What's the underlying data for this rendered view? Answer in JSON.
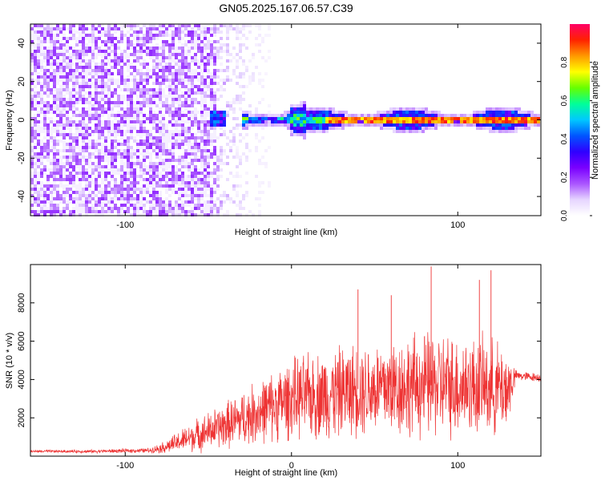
{
  "title": "GN05.2025.167.06.57.C39",
  "colors": {
    "snr_series": "#ee3333",
    "cmap": [
      "#ffffff",
      "#e6d5ff",
      "#aa55ff",
      "#7a00ff",
      "#2f00ff",
      "#0055ff",
      "#00c8ff",
      "#00ff99",
      "#66ff00",
      "#ffff00",
      "#ff9900",
      "#ff2200",
      "#ff0066"
    ]
  },
  "chart_data": [
    {
      "type": "heatmap",
      "xlabel": "Height of straight line (km)",
      "ylabel": "Frequency (Hz)",
      "xlim": [
        -157,
        150
      ],
      "ylim": [
        -50,
        50
      ],
      "xticks": [
        -100,
        0,
        100
      ],
      "xtick_labels": [
        "-100",
        "",
        "100"
      ],
      "yticks": [
        -40,
        -20,
        0,
        20,
        40
      ],
      "ytick_labels": [
        "-40",
        "-20",
        "0",
        "20",
        "40"
      ],
      "grid": false,
      "colorbar": {
        "label": "Normalized spectral amplitude",
        "range": [
          0,
          1
        ],
        "ticks": [
          0.0,
          0.2,
          0.4,
          0.6,
          0.8
        ],
        "tick_labels": [
          "0.0",
          "0.2",
          "0.4",
          "0.6",
          "0.8"
        ]
      },
      "features": [
        {
          "x_range": [
            -157,
            -45
          ],
          "freq_range": [
            -50,
            50
          ],
          "amplitude": 0.12
        },
        {
          "x_range": [
            -45,
            -12
          ],
          "freq_range": [
            -50,
            50
          ],
          "amplitude": 0.05
        },
        {
          "x_range": [
            -50,
            -40
          ],
          "freq_range": [
            -5,
            5
          ],
          "amplitude": 0.35
        },
        {
          "x_range": [
            -30,
            150
          ],
          "freq_range": [
            -4,
            4
          ],
          "amplitude": 0.45
        },
        {
          "x_range": [
            20,
            80
          ],
          "freq_range": [
            -1,
            1
          ],
          "amplitude": 0.9
        }
      ]
    },
    {
      "type": "line",
      "xlabel": "Height of straight line (km)",
      "ylabel": "SNR (10 * v/v)",
      "xlim": [
        -157,
        150
      ],
      "ylim": [
        0,
        10000
      ],
      "xticks": [
        -100,
        0,
        100
      ],
      "xtick_labels": [
        "-100",
        "0",
        "100"
      ],
      "yticks": [
        2000,
        4000,
        6000,
        8000
      ],
      "ytick_labels": [
        "2000",
        "4000",
        "6000",
        "8000"
      ],
      "grid": false,
      "envelope": {
        "x": [
          -157,
          -120,
          -85,
          -75,
          -60,
          -40,
          -20,
          0,
          20,
          40,
          60,
          80,
          100,
          120,
          130,
          135,
          150
        ],
        "base": [
          250,
          250,
          300,
          500,
          1000,
          1600,
          2300,
          3000,
          3200,
          3500,
          3600,
          3700,
          3700,
          3600,
          3500,
          4200,
          4100
        ],
        "spread": [
          80,
          100,
          150,
          400,
          900,
          1400,
          1900,
          2400,
          2700,
          2800,
          3000,
          3200,
          3100,
          2900,
          2600,
          300,
          250
        ]
      },
      "peaks": [
        {
          "x": 84,
          "y": 9900
        },
        {
          "x": 120,
          "y": 9700
        },
        {
          "x": 113,
          "y": 9200
        },
        {
          "x": 40,
          "y": 8700
        },
        {
          "x": 60,
          "y": 8400
        }
      ]
    }
  ]
}
